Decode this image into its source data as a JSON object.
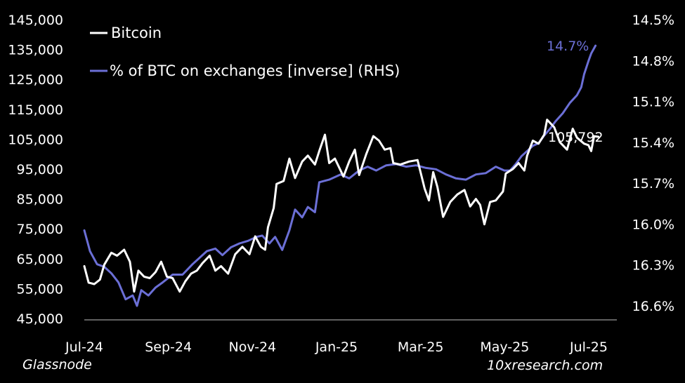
{
  "chart_data": {
    "type": "line",
    "x_tick_labels": [
      "Jul-24",
      "Sep-24",
      "Nov-24",
      "Jan-25",
      "Mar-25",
      "May-25",
      "Jul-25"
    ],
    "x_range": [
      "2024-07-01",
      "2025-07-10"
    ],
    "y_left": {
      "range": [
        45000,
        145000
      ],
      "tick_labels": [
        "45,000",
        "55,000",
        "65,000",
        "75,000",
        "85,000",
        "95,000",
        "105,000",
        "115,000",
        "125,000",
        "135,000",
        "145,000"
      ]
    },
    "y_right": {
      "inverted": true,
      "range": [
        16.7,
        14.5
      ],
      "tick_labels": [
        "14.5%",
        "14.8%",
        "15.1%",
        "15.4%",
        "15.7%",
        "16.0%",
        "16.3%",
        "16.6%"
      ]
    },
    "legend": {
      "position": "top-left"
    },
    "series": [
      {
        "name": "Bitcoin",
        "axis": "left",
        "color": "#ffffff",
        "end_label": "105,792",
        "points": [
          [
            "2024-07-01",
            62500
          ],
          [
            "2024-07-04",
            57000
          ],
          [
            "2024-07-08",
            56500
          ],
          [
            "2024-07-12",
            58000
          ],
          [
            "2024-07-15",
            63000
          ],
          [
            "2024-07-20",
            67000
          ],
          [
            "2024-07-24",
            66000
          ],
          [
            "2024-07-29",
            68000
          ],
          [
            "2024-08-02",
            64000
          ],
          [
            "2024-08-05",
            54000
          ],
          [
            "2024-08-08",
            61000
          ],
          [
            "2024-08-12",
            59000
          ],
          [
            "2024-08-16",
            58500
          ],
          [
            "2024-08-20",
            60500
          ],
          [
            "2024-08-24",
            64000
          ],
          [
            "2024-08-28",
            59000
          ],
          [
            "2024-09-01",
            58500
          ],
          [
            "2024-09-06",
            54000
          ],
          [
            "2024-09-10",
            57500
          ],
          [
            "2024-09-14",
            60000
          ],
          [
            "2024-09-18",
            61000
          ],
          [
            "2024-09-22",
            63500
          ],
          [
            "2024-09-27",
            66000
          ],
          [
            "2024-10-01",
            61000
          ],
          [
            "2024-10-05",
            62500
          ],
          [
            "2024-10-10",
            60000
          ],
          [
            "2024-10-15",
            66500
          ],
          [
            "2024-10-20",
            69000
          ],
          [
            "2024-10-25",
            66500
          ],
          [
            "2024-10-29",
            72500
          ],
          [
            "2024-11-02",
            69000
          ],
          [
            "2024-11-05",
            68000
          ],
          [
            "2024-11-07",
            75500
          ],
          [
            "2024-11-11",
            82000
          ],
          [
            "2024-11-13",
            90000
          ],
          [
            "2024-11-18",
            91000
          ],
          [
            "2024-11-22",
            98500
          ],
          [
            "2024-11-26",
            92000
          ],
          [
            "2024-12-01",
            97500
          ],
          [
            "2024-12-05",
            99500
          ],
          [
            "2024-12-10",
            96500
          ],
          [
            "2024-12-13",
            101000
          ],
          [
            "2024-12-17",
            106500
          ],
          [
            "2024-12-20",
            97000
          ],
          [
            "2024-12-24",
            98500
          ],
          [
            "2024-12-30",
            92500
          ],
          [
            "2025-01-03",
            97500
          ],
          [
            "2025-01-07",
            101500
          ],
          [
            "2025-01-10",
            93000
          ],
          [
            "2025-01-15",
            100000
          ],
          [
            "2025-01-20",
            106000
          ],
          [
            "2025-01-24",
            104500
          ],
          [
            "2025-01-28",
            101500
          ],
          [
            "2025-02-01",
            102000
          ],
          [
            "2025-02-03",
            97000
          ],
          [
            "2025-02-08",
            96500
          ],
          [
            "2025-02-14",
            97500
          ],
          [
            "2025-02-20",
            98000
          ],
          [
            "2025-02-25",
            88500
          ],
          [
            "2025-02-28",
            84500
          ],
          [
            "2025-03-03",
            94000
          ],
          [
            "2025-03-06",
            89000
          ],
          [
            "2025-03-10",
            79000
          ],
          [
            "2025-03-15",
            84000
          ],
          [
            "2025-03-20",
            86500
          ],
          [
            "2025-03-25",
            88000
          ],
          [
            "2025-03-29",
            82500
          ],
          [
            "2025-04-02",
            85000
          ],
          [
            "2025-04-05",
            83000
          ],
          [
            "2025-04-08",
            76500
          ],
          [
            "2025-04-12",
            84000
          ],
          [
            "2025-04-16",
            84500
          ],
          [
            "2025-04-21",
            87500
          ],
          [
            "2025-04-23",
            93500
          ],
          [
            "2025-04-28",
            95000
          ],
          [
            "2025-05-02",
            97000
          ],
          [
            "2025-05-06",
            94500
          ],
          [
            "2025-05-08",
            99500
          ],
          [
            "2025-05-12",
            104500
          ],
          [
            "2025-05-16",
            103500
          ],
          [
            "2025-05-20",
            106500
          ],
          [
            "2025-05-22",
            111500
          ],
          [
            "2025-05-27",
            109000
          ],
          [
            "2025-05-31",
            104000
          ],
          [
            "2025-06-05",
            101500
          ],
          [
            "2025-06-09",
            108500
          ],
          [
            "2025-06-12",
            105500
          ],
          [
            "2025-06-17",
            103500
          ],
          [
            "2025-06-20",
            103000
          ],
          [
            "2025-06-22",
            101000
          ],
          [
            "2025-06-24",
            106000
          ],
          [
            "2025-06-27",
            105792
          ]
        ]
      },
      {
        "name": "% of BTC on exchanges [inverse] (RHS)",
        "axis": "right",
        "color": "#6b6fd6",
        "end_label": "14.7%",
        "points": [
          [
            "2024-07-01",
            16.12
          ],
          [
            "2024-07-05",
            16.28
          ],
          [
            "2024-07-10",
            16.38
          ],
          [
            "2024-07-15",
            16.4
          ],
          [
            "2024-07-20",
            16.45
          ],
          [
            "2024-07-25",
            16.52
          ],
          [
            "2024-07-30",
            16.65
          ],
          [
            "2024-08-04",
            16.62
          ],
          [
            "2024-08-07",
            16.7
          ],
          [
            "2024-08-10",
            16.58
          ],
          [
            "2024-08-15",
            16.62
          ],
          [
            "2024-08-20",
            16.56
          ],
          [
            "2024-08-25",
            16.52
          ],
          [
            "2024-09-01",
            16.46
          ],
          [
            "2024-09-08",
            16.46
          ],
          [
            "2024-09-15",
            16.38
          ],
          [
            "2024-09-20",
            16.33
          ],
          [
            "2024-09-25",
            16.28
          ],
          [
            "2024-10-01",
            16.26
          ],
          [
            "2024-10-06",
            16.31
          ],
          [
            "2024-10-12",
            16.25
          ],
          [
            "2024-10-18",
            16.22
          ],
          [
            "2024-10-24",
            16.2
          ],
          [
            "2024-10-30",
            16.17
          ],
          [
            "2024-11-03",
            16.16
          ],
          [
            "2024-11-08",
            16.22
          ],
          [
            "2024-11-12",
            16.17
          ],
          [
            "2024-11-17",
            16.27
          ],
          [
            "2024-11-22",
            16.12
          ],
          [
            "2024-11-26",
            15.96
          ],
          [
            "2024-12-01",
            16.02
          ],
          [
            "2024-12-05",
            15.94
          ],
          [
            "2024-12-10",
            15.98
          ],
          [
            "2024-12-13",
            15.75
          ],
          [
            "2024-12-20",
            15.73
          ],
          [
            "2024-12-28",
            15.69
          ],
          [
            "2025-01-03",
            15.72
          ],
          [
            "2025-01-10",
            15.66
          ],
          [
            "2025-01-16",
            15.63
          ],
          [
            "2025-01-22",
            15.66
          ],
          [
            "2025-01-29",
            15.62
          ],
          [
            "2025-02-05",
            15.61
          ],
          [
            "2025-02-12",
            15.63
          ],
          [
            "2025-02-19",
            15.62
          ],
          [
            "2025-02-26",
            15.64
          ],
          [
            "2025-03-05",
            15.65
          ],
          [
            "2025-03-12",
            15.69
          ],
          [
            "2025-03-19",
            15.72
          ],
          [
            "2025-03-26",
            15.73
          ],
          [
            "2025-04-02",
            15.69
          ],
          [
            "2025-04-09",
            15.68
          ],
          [
            "2025-04-16",
            15.63
          ],
          [
            "2025-04-22",
            15.66
          ],
          [
            "2025-04-26",
            15.66
          ],
          [
            "2025-04-30",
            15.61
          ],
          [
            "2025-05-04",
            15.55
          ],
          [
            "2025-05-08",
            15.51
          ],
          [
            "2025-05-12",
            15.47
          ],
          [
            "2025-05-16",
            15.45
          ],
          [
            "2025-05-20",
            15.39
          ],
          [
            "2025-05-24",
            15.34
          ],
          [
            "2025-05-28",
            15.28
          ],
          [
            "2025-06-02",
            15.22
          ],
          [
            "2025-06-07",
            15.14
          ],
          [
            "2025-06-12",
            15.08
          ],
          [
            "2025-06-15",
            15.02
          ],
          [
            "2025-06-17",
            14.92
          ],
          [
            "2025-06-20",
            14.82
          ],
          [
            "2025-06-22",
            14.76
          ],
          [
            "2025-06-25",
            14.7
          ]
        ]
      }
    ]
  },
  "sources": {
    "left": "Glassnode",
    "right": "10xresearch.com"
  }
}
